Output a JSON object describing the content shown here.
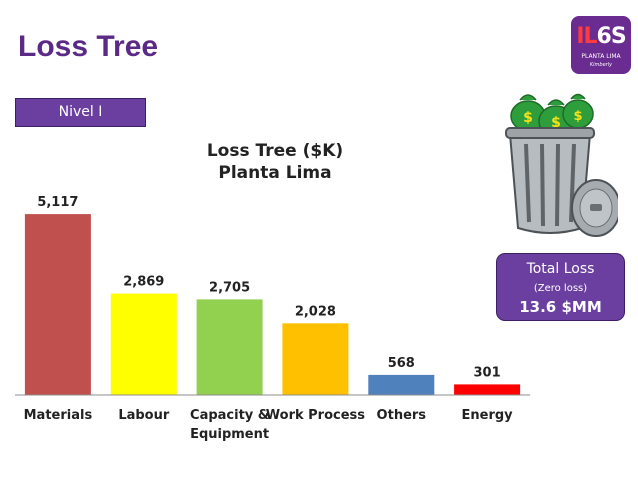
{
  "slide": {
    "title": "Loss Tree",
    "level_label": "Nivel I",
    "logo": {
      "main_left": "IL",
      "main_right": "6S",
      "sub1": "PLANTA LIMA",
      "sub2": "Kimberly"
    }
  },
  "total": {
    "label": "Total Loss",
    "note": "(Zero loss)",
    "value": "13.6 $MM"
  },
  "icons": [
    "trash-can-icon",
    "money-bag-icon",
    "logo-icon"
  ],
  "colors": {
    "accent": "#6b3fa0",
    "title": "#5b2a86"
  },
  "chart_data": {
    "type": "bar",
    "title": "Loss Tree ($K)",
    "subtitle": "Planta Lima",
    "categories": [
      "Materials",
      "Labour",
      "Capacity & Equipment",
      "Work Process",
      "Others",
      "Energy"
    ],
    "values": [
      5117,
      2869,
      2705,
      2028,
      568,
      301
    ],
    "value_labels": [
      "5,117",
      "2,869",
      "2,705",
      "2,028",
      "568",
      "301"
    ],
    "bar_colors": [
      "#c0504d",
      "#ffff00",
      "#92d050",
      "#ffc000",
      "#4f81bd",
      "#ff0000"
    ],
    "xlabel": "",
    "ylabel": "",
    "ylim": [
      0,
      5800
    ],
    "grid": false,
    "legend": "none"
  }
}
